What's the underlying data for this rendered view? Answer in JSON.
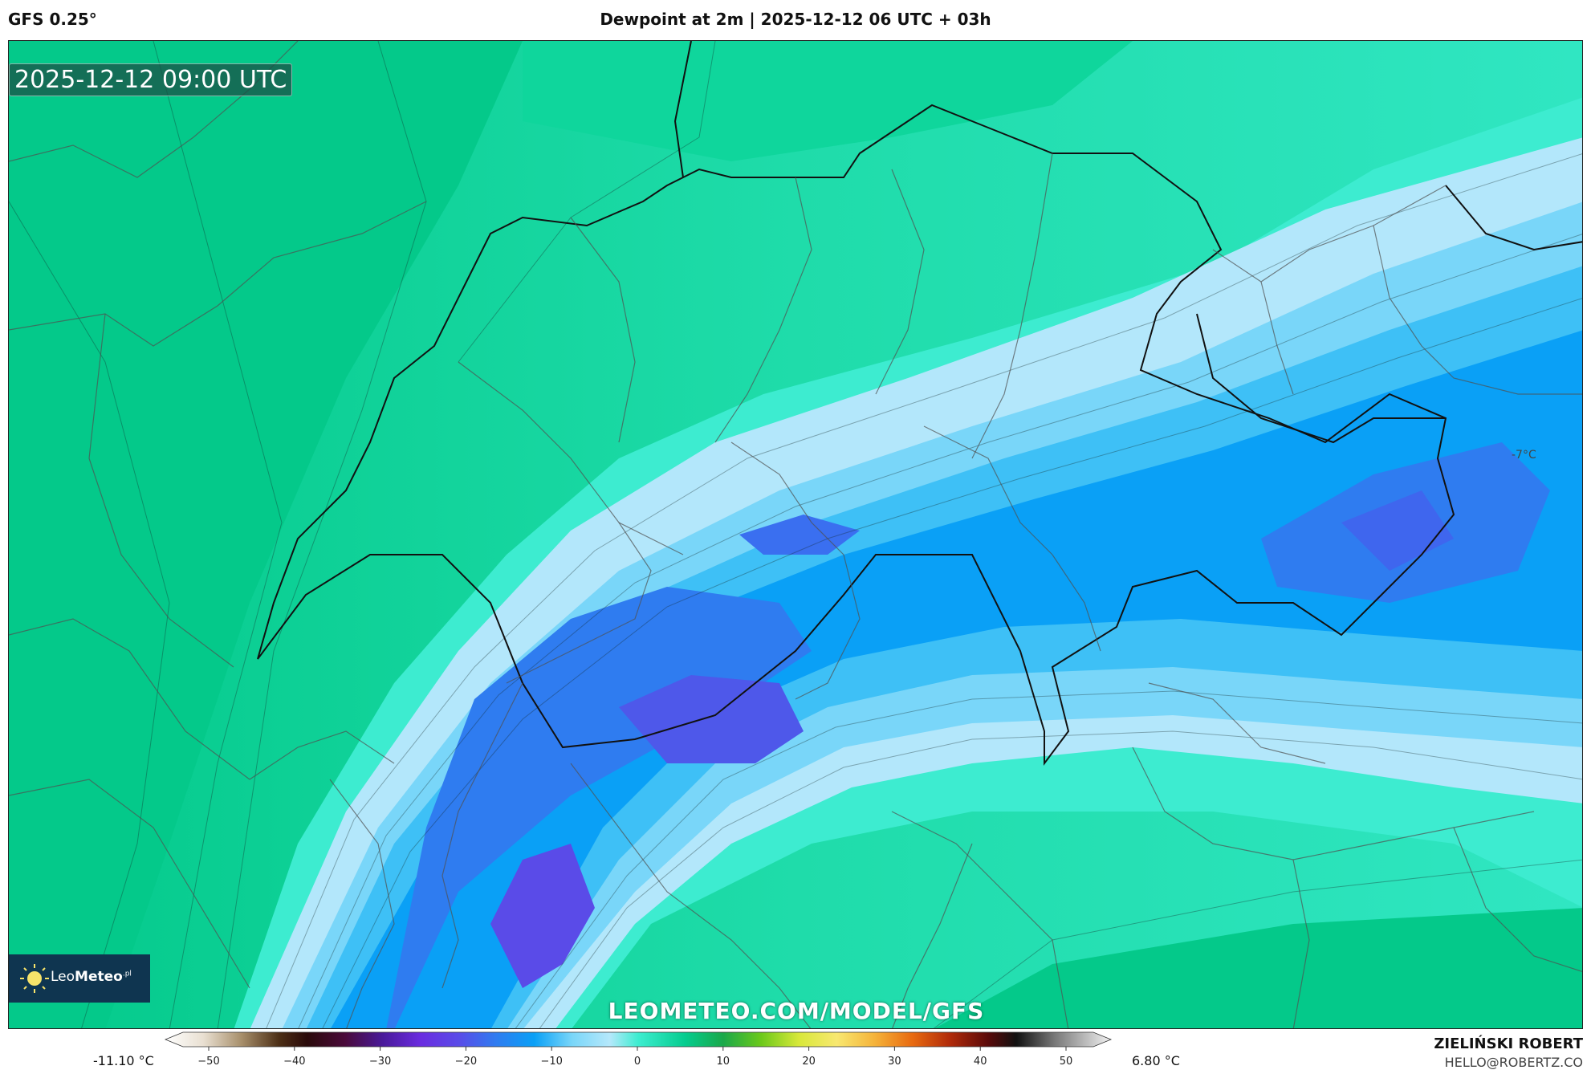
{
  "header": {
    "model": "GFS 0.25°",
    "title": "Dewpoint at 2m | 2025-12-12 06 UTC + 03h"
  },
  "map": {
    "valid_time": "2025-12-12 09:00 UTC",
    "watermark": "LEOMETEO.COM/MODEL/GFS",
    "logo": {
      "light": "Leo",
      "bold": "Meteo",
      "sup": ".pl"
    },
    "annotation": "-7°C"
  },
  "legend": {
    "min_label": "-11.10 °C",
    "max_label": "6.80 °C",
    "ticks": [
      "−50",
      "−40",
      "−30",
      "−20",
      "−10",
      "0",
      "10",
      "20",
      "30",
      "40",
      "50"
    ]
  },
  "credits": {
    "author": "ZIELIŃSKI ROBERT",
    "email": "HELLO@ROBERTZ.CO"
  },
  "colors": {
    "warm_green": "#05cc8e",
    "mint": "#3dedd0",
    "pale_blue": "#b5e8fb",
    "sky_blue": "#3fc0f5",
    "blue": "#0a9ff5",
    "violet": "#5a4be8"
  }
}
